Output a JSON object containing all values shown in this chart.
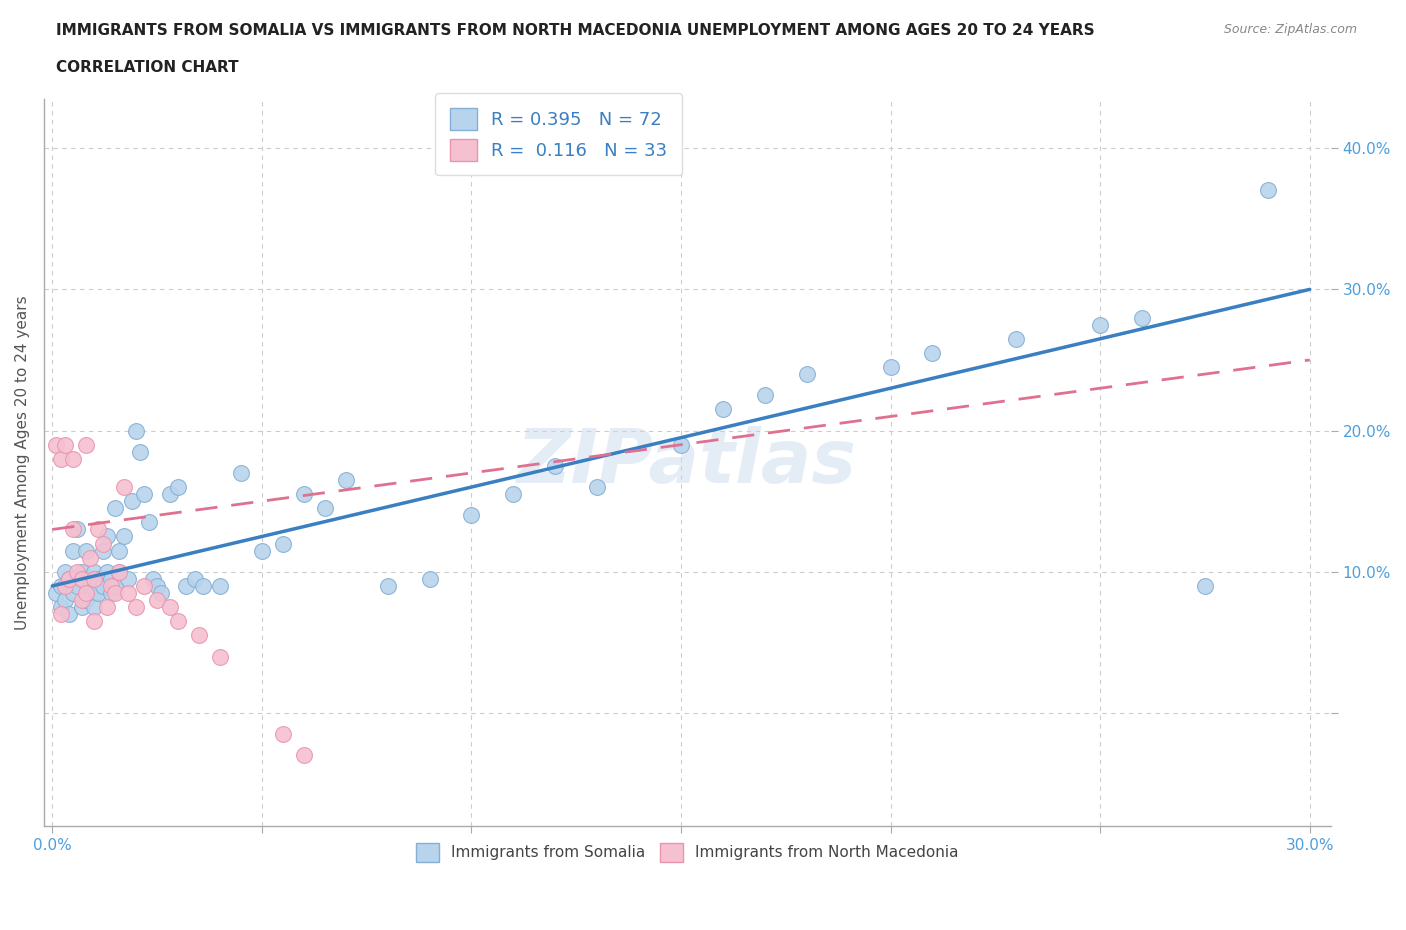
{
  "title_line1": "IMMIGRANTS FROM SOMALIA VS IMMIGRANTS FROM NORTH MACEDONIA UNEMPLOYMENT AMONG AGES 20 TO 24 YEARS",
  "title_line2": "CORRELATION CHART",
  "source": "Source: ZipAtlas.com",
  "xlabel": "",
  "ylabel": "Unemployment Among Ages 20 to 24 years",
  "xlim": [
    -0.002,
    0.305
  ],
  "ylim": [
    -0.08,
    0.435
  ],
  "xticks": [
    0.0,
    0.05,
    0.1,
    0.15,
    0.2,
    0.25,
    0.3
  ],
  "xticklabels": [
    "0.0%",
    "",
    "",
    "",
    "",
    "",
    "30.0%"
  ],
  "yticks": [
    0.0,
    0.1,
    0.2,
    0.3,
    0.4
  ],
  "yticklabels": [
    "",
    "10.0%",
    "20.0%",
    "30.0%",
    "40.0%"
  ],
  "grid_color": "#cccccc",
  "somalia_color": "#b8d4ec",
  "somalia_edge": "#85afd4",
  "macedonia_color": "#f5c0d0",
  "macedonia_edge": "#e895b0",
  "somalia_line_color": "#3a7fc1",
  "macedonia_line_color": "#e07090",
  "R_somalia": 0.395,
  "N_somalia": 72,
  "R_macedonia": 0.116,
  "N_macedonia": 33,
  "watermark": "ZIPatlas",
  "legend_label_somalia": "Immigrants from Somalia",
  "legend_label_macedonia": "Immigrants from North Macedonia",
  "somalia_line": [
    0.09,
    0.3
  ],
  "macedonia_line": [
    0.13,
    0.25
  ],
  "somalia_scatter_x": [
    0.001,
    0.002,
    0.002,
    0.003,
    0.003,
    0.004,
    0.004,
    0.005,
    0.005,
    0.006,
    0.006,
    0.007,
    0.007,
    0.007,
    0.008,
    0.008,
    0.009,
    0.009,
    0.01,
    0.01,
    0.01,
    0.011,
    0.011,
    0.012,
    0.012,
    0.013,
    0.013,
    0.014,
    0.014,
    0.015,
    0.015,
    0.016,
    0.016,
    0.017,
    0.018,
    0.019,
    0.02,
    0.021,
    0.022,
    0.023,
    0.024,
    0.025,
    0.026,
    0.028,
    0.03,
    0.032,
    0.034,
    0.036,
    0.04,
    0.045,
    0.05,
    0.055,
    0.06,
    0.065,
    0.07,
    0.08,
    0.09,
    0.1,
    0.11,
    0.12,
    0.13,
    0.15,
    0.16,
    0.17,
    0.18,
    0.2,
    0.21,
    0.23,
    0.25,
    0.26,
    0.275,
    0.29
  ],
  "somalia_scatter_y": [
    0.085,
    0.09,
    0.075,
    0.1,
    0.08,
    0.095,
    0.07,
    0.115,
    0.085,
    0.09,
    0.13,
    0.095,
    0.075,
    0.1,
    0.08,
    0.115,
    0.09,
    0.095,
    0.085,
    0.1,
    0.075,
    0.095,
    0.085,
    0.115,
    0.09,
    0.1,
    0.125,
    0.095,
    0.085,
    0.09,
    0.145,
    0.115,
    0.1,
    0.125,
    0.095,
    0.15,
    0.2,
    0.185,
    0.155,
    0.135,
    0.095,
    0.09,
    0.085,
    0.155,
    0.16,
    0.09,
    0.095,
    0.09,
    0.09,
    0.17,
    0.115,
    0.12,
    0.155,
    0.145,
    0.165,
    0.09,
    0.095,
    0.14,
    0.155,
    0.175,
    0.16,
    0.19,
    0.215,
    0.225,
    0.24,
    0.245,
    0.255,
    0.265,
    0.275,
    0.28,
    0.09,
    0.37
  ],
  "macedonia_scatter_x": [
    0.001,
    0.002,
    0.002,
    0.003,
    0.003,
    0.004,
    0.005,
    0.005,
    0.006,
    0.007,
    0.007,
    0.008,
    0.008,
    0.009,
    0.01,
    0.01,
    0.011,
    0.012,
    0.013,
    0.014,
    0.015,
    0.016,
    0.017,
    0.018,
    0.02,
    0.022,
    0.025,
    0.028,
    0.03,
    0.035,
    0.04,
    0.055,
    0.06
  ],
  "macedonia_scatter_y": [
    0.19,
    0.07,
    0.18,
    0.09,
    0.19,
    0.095,
    0.13,
    0.18,
    0.1,
    0.08,
    0.095,
    0.085,
    0.19,
    0.11,
    0.065,
    0.095,
    0.13,
    0.12,
    0.075,
    0.09,
    0.085,
    0.1,
    0.16,
    0.085,
    0.075,
    0.09,
    0.08,
    0.075,
    0.065,
    0.055,
    0.04,
    -0.015,
    -0.03
  ]
}
